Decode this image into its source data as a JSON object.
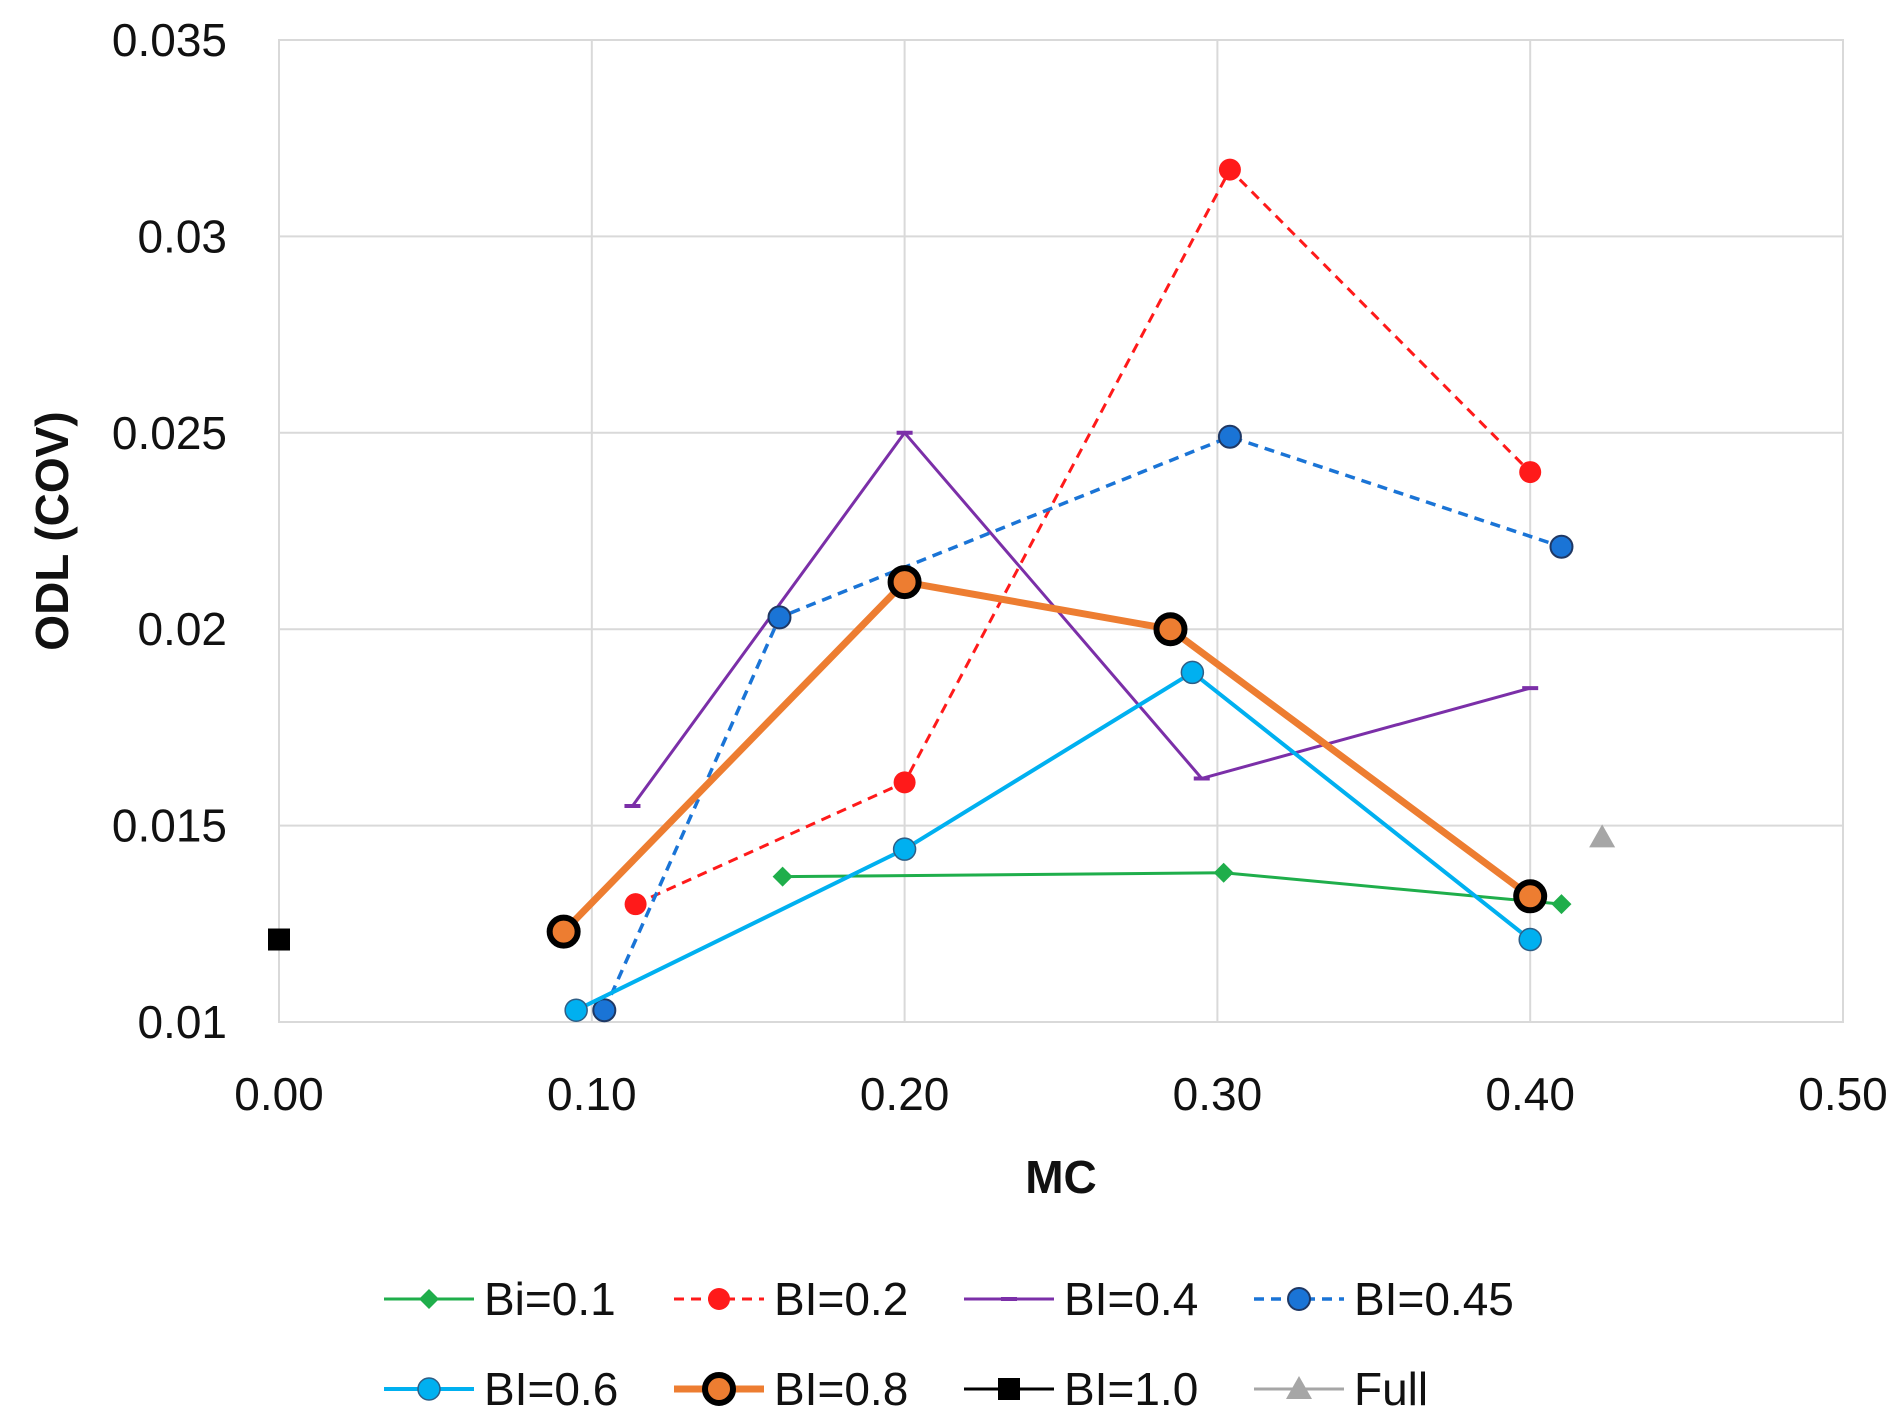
{
  "chart_data": {
    "type": "line",
    "title": "",
    "xlabel": "MC",
    "ylabel": "ODL (COV)",
    "xlim": [
      0,
      0.5
    ],
    "ylim": [
      0.01,
      0.035
    ],
    "x_ticks": [
      0.0,
      0.1,
      0.2,
      0.3,
      0.4,
      0.5
    ],
    "x_tick_labels": [
      "0.00",
      "0.10",
      "0.20",
      "0.30",
      "0.40",
      "0.50"
    ],
    "y_ticks": [
      0.01,
      0.015,
      0.02,
      0.025,
      0.03,
      0.035
    ],
    "y_tick_labels": [
      "0.01",
      "0.015",
      "0.02",
      "0.025",
      "0.03",
      "0.035"
    ],
    "grid": true,
    "legend_position": "bottom",
    "series": [
      {
        "name": "Bi=0.1",
        "color": "#1fae4b",
        "line": "solid",
        "line_width": 3,
        "marker": "diamond",
        "x": [
          0.161,
          0.302,
          0.41
        ],
        "y": [
          0.0137,
          0.0138,
          0.013
        ]
      },
      {
        "name": "BI=0.2",
        "color": "#ff1a1a",
        "line": "dashed",
        "line_width": 3,
        "marker": "circle-filled",
        "x": [
          0.114,
          0.2,
          0.304,
          0.4
        ],
        "y": [
          0.013,
          0.0161,
          0.0317,
          0.024
        ]
      },
      {
        "name": "BI=0.4",
        "color": "#7b2fa8",
        "line": "solid",
        "line_width": 3,
        "marker": "dash",
        "x": [
          0.113,
          0.2,
          0.295,
          0.4
        ],
        "y": [
          0.0155,
          0.025,
          0.0162,
          0.0185
        ]
      },
      {
        "name": "BI=0.45",
        "color": "#1a74d6",
        "line": "dashed",
        "line_width": 3.5,
        "marker": "circle-blue",
        "x": [
          0.104,
          0.16,
          0.304,
          0.41
        ],
        "y": [
          0.0103,
          0.0203,
          0.0249,
          0.0221
        ]
      },
      {
        "name": "BI=0.6",
        "color": "#00b0f0",
        "line": "solid",
        "line_width": 4,
        "marker": "circle-light",
        "x": [
          0.095,
          0.2,
          0.292,
          0.4
        ],
        "y": [
          0.0103,
          0.0144,
          0.0189,
          0.0121
        ]
      },
      {
        "name": "BI=0.8",
        "color": "#ed7d31",
        "line": "solid",
        "line_width": 7,
        "marker": "circle-bold",
        "x": [
          0.091,
          0.2,
          0.285,
          0.4
        ],
        "y": [
          0.0123,
          0.0212,
          0.02,
          0.0132
        ]
      },
      {
        "name": "BI=1.0",
        "color": "#000000",
        "line": "solid",
        "line_width": 3,
        "marker": "square",
        "x": [
          0.0
        ],
        "y": [
          0.0121
        ]
      },
      {
        "name": "Full",
        "color": "#a6a6a6",
        "line": "none",
        "line_width": 3,
        "marker": "triangle",
        "x": [
          0.423
        ],
        "y": [
          0.0147
        ]
      }
    ]
  }
}
